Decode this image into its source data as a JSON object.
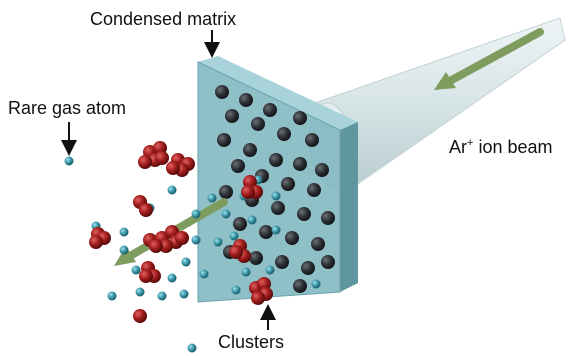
{
  "labels": {
    "condensed_matrix": "Condensed matrix",
    "rare_gas_atom": "Rare gas atom",
    "clusters": "Clusters",
    "beam_prefix": "Ar",
    "beam_charge": "+",
    "beam_suffix": " ion beam"
  },
  "colors": {
    "matrix_face": "#7fb6bf",
    "matrix_top": "#a9d3da",
    "matrix_side": "#5f97a1",
    "matrix_atom": "#2b2f33",
    "beam_cone": "#d7e4e6",
    "arrow_green": "#7f9c5f",
    "cluster_atom": "#a11c1c",
    "rare_gas_atom": "#3a97a8",
    "pointer_arrow": "#111111"
  }
}
